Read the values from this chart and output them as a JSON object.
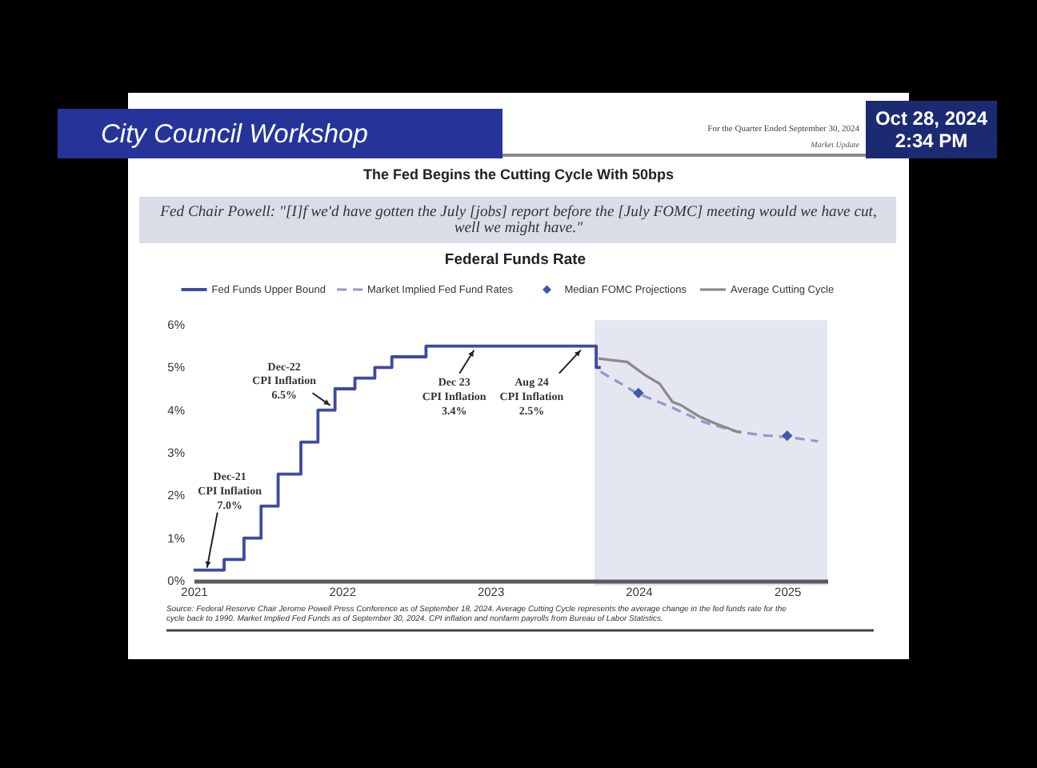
{
  "chart_data": {
    "type": "step",
    "title": "Federal Funds Rate",
    "xlim": [
      "2021-01-01",
      "2025-04-10"
    ],
    "xticks": [
      "2021",
      "2022",
      "2023",
      "2024",
      "2025"
    ],
    "ylim": [
      0,
      6
    ],
    "yticks": [
      {
        "value": 0,
        "label": "0%"
      },
      {
        "value": 1,
        "label": "1%"
      },
      {
        "value": 2,
        "label": "2%"
      },
      {
        "value": 3,
        "label": "3%"
      },
      {
        "value": 4,
        "label": "4%"
      },
      {
        "value": 5,
        "label": "5%"
      },
      {
        "value": 6,
        "label": "6%"
      }
    ],
    "grid": false,
    "legend": "top",
    "series": [
      {
        "name": "Fed Funds Upper Bound",
        "color": "#3d4ba0",
        "x": [
          "2021-01-01",
          "2021-03-17",
          "2021-05-05",
          "2021-06-16",
          "2021-07-28",
          "2021-09-22",
          "2021-11-03",
          "2021-12-15",
          "2022-02-02",
          "2022-03-23",
          "2022-05-04",
          "2022-07-27",
          "2023-09-19",
          "2023-09-30"
        ],
        "values": [
          0.25,
          0.5,
          1.0,
          1.75,
          2.5,
          3.25,
          4.0,
          4.5,
          4.75,
          5.0,
          5.25,
          5.5,
          5.0,
          5.0
        ]
      },
      {
        "name": "Market Implied Fed Fund Rates",
        "type": "line",
        "color": "#8e9bc9",
        "line_style": "dashed",
        "x": [
          "2023-09-30",
          "2023-12-28",
          "2024-03-24",
          "2024-06-10",
          "2024-08-28",
          "2024-11-02",
          "2025-01-01",
          "2025-03-18"
        ],
        "values": [
          4.9,
          4.4,
          4.06,
          3.72,
          3.5,
          3.41,
          3.37,
          3.27
        ]
      },
      {
        "name": "Median FOMC Projections",
        "type": "scatter",
        "color": "#4656a8",
        "marker": "diamond",
        "x": [
          "2024-01-01",
          "2025-01-01"
        ],
        "values": [
          4.4,
          3.4
        ]
      },
      {
        "name": "Average Cutting Cycle",
        "type": "line",
        "color": "#8a8a8a",
        "x": [
          "2023-09-25",
          "2023-12-04",
          "2024-01-19",
          "2024-02-22",
          "2024-03-25",
          "2024-04-14",
          "2024-05-04",
          "2024-05-30",
          "2024-07-08",
          "2024-08-29",
          "2024-09-10"
        ],
        "values": [
          5.21,
          5.13,
          4.81,
          4.62,
          4.19,
          4.12,
          4.0,
          3.85,
          3.69,
          3.5,
          3.48
        ]
      }
    ],
    "bands": [
      {
        "axis": "x",
        "from": "2023-09-15",
        "to": "2025-04-10",
        "color": "#e4e6f1"
      }
    ],
    "annotations": [
      "City Council Workshop",
      "Oct 28, 2024",
      "2:34 PM",
      "For the Quarter Ended September 30, 2024",
      "Market Update",
      "The Fed Begins the Cutting Cycle With 50bps",
      "Fed Chair Powell: \"[I]f we'd have gotten the July [jobs] report before the [July FOMC] meeting would we have cut, well we might have.\"",
      "Source: Federal Reserve Chair Jerome Powell Press Conference as of September 18, 2024. Average Cutting Cycle represents the average change in the fed funds rate for the cycle back to 1990. Market Implied Fed Funds as of September 30, 2024. CPI inflation and nonfarm payrolls from Bureau of Labor Statistics.",
      {
        "text": "Dec-21\nCPI Inflation\n7.0%",
        "x": "2021-02-03",
        "y": 0.25
      },
      {
        "text": "Dec-22\nCPI Inflation\n6.5%",
        "x": "2021-12-03",
        "y": 4.0
      },
      {
        "text": "Dec 23\nCPI Inflation\n3.4%",
        "x": "2022-11-22",
        "y": 5.5
      },
      {
        "text": "Aug 24\nCPI Inflation\n2.5%",
        "x": "2023-08-12",
        "y": 5.5
      }
    ]
  }
}
